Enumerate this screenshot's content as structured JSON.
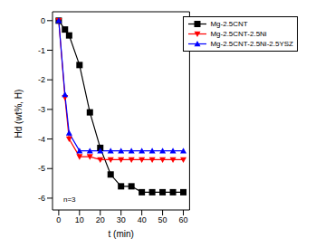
{
  "chart_data": {
    "type": "line",
    "x_label": "t (min)",
    "y_label": "Hd (wt%, H)",
    "annotation": "n=3",
    "x": [
      0,
      3,
      5,
      10,
      15,
      20,
      25,
      30,
      35,
      40,
      45,
      50,
      55,
      60
    ],
    "series": [
      {
        "name": "Mg-2.5CNT",
        "color": "#000000",
        "marker": "square",
        "values": [
          0,
          -0.3,
          -0.5,
          -1.5,
          -3.1,
          -4.3,
          -5.2,
          -5.6,
          -5.6,
          -5.8,
          -5.8,
          -5.8,
          -5.8,
          -5.8
        ]
      },
      {
        "name": "Mg-2.5CNT-2.5Ni",
        "color": "#ff0000",
        "marker": "triangle_down",
        "values": [
          0,
          -2.6,
          -4.0,
          -4.6,
          -4.6,
          -4.7,
          -4.7,
          -4.7,
          -4.7,
          -4.7,
          -4.7,
          -4.7,
          -4.7,
          -4.7
        ]
      },
      {
        "name": "Mg-2.5CNT-2.5Ni-2.5YSZ",
        "color": "#0000ff",
        "marker": "triangle_up",
        "values": [
          0,
          -2.5,
          -3.8,
          -4.4,
          -4.4,
          -4.4,
          -4.4,
          -4.4,
          -4.4,
          -4.4,
          -4.4,
          -4.4,
          -4.4,
          -4.4
        ]
      }
    ],
    "xlim": [
      -3,
      63
    ],
    "xticks": [
      0,
      10,
      20,
      30,
      40,
      50,
      60
    ],
    "ylim": [
      -6.4,
      0.3
    ],
    "yticks": [
      0,
      -1,
      -2,
      -3,
      -4,
      -5,
      -6
    ],
    "legend": "upper right"
  }
}
